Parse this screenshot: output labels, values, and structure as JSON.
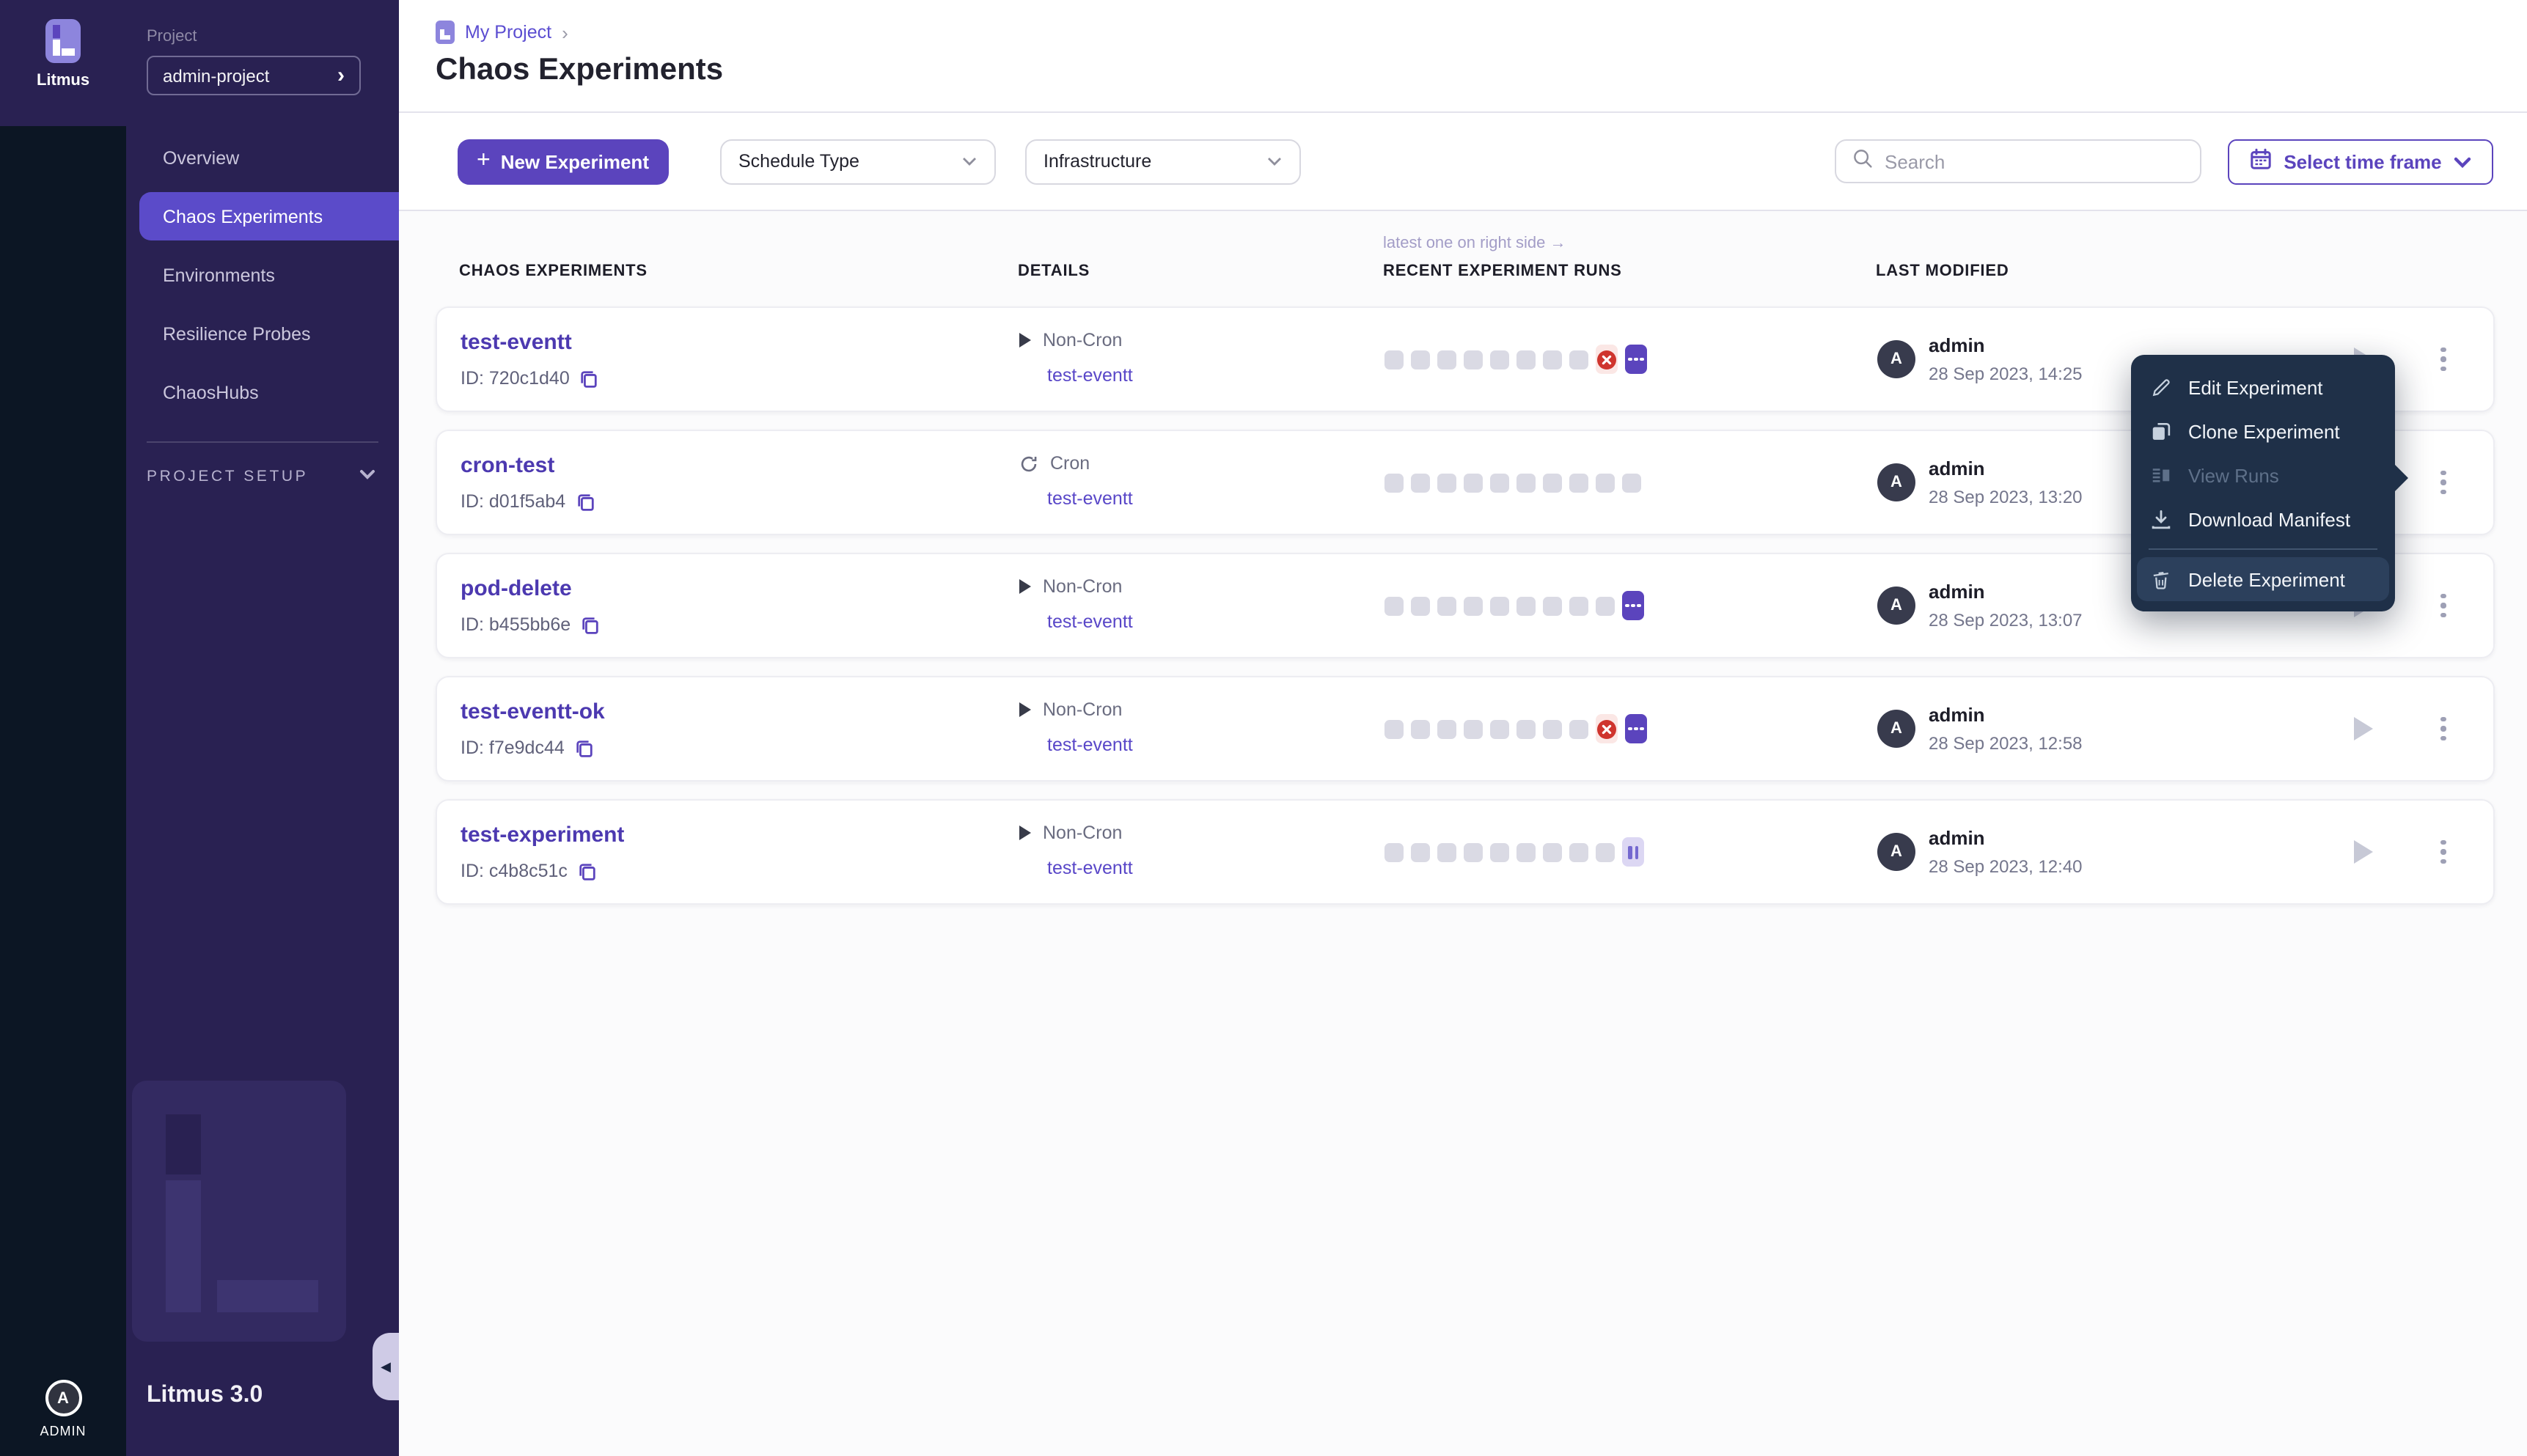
{
  "brand": {
    "name": "Litmus",
    "version": "Litmus 3.0",
    "admin_label": "ADMIN",
    "avatar_letter": "A"
  },
  "sidebar": {
    "project_label": "Project",
    "project_name": "admin-project",
    "items": [
      {
        "label": "Overview",
        "active": false
      },
      {
        "label": "Chaos Experiments",
        "active": true
      },
      {
        "label": "Environments",
        "active": false
      },
      {
        "label": "Resilience Probes",
        "active": false
      },
      {
        "label": "ChaosHubs",
        "active": false
      }
    ],
    "section_label": "PROJECT SETUP"
  },
  "header": {
    "breadcrumb": "My Project",
    "title": "Chaos Experiments"
  },
  "toolbar": {
    "new_experiment": "New Experiment",
    "schedule_type": "Schedule Type",
    "infrastructure": "Infrastructure",
    "search_placeholder": "Search",
    "time_frame": "Select time frame"
  },
  "table": {
    "annotation": "latest one on right side →",
    "headers": [
      "CHAOS EXPERIMENTS",
      "DETAILS",
      "RECENT EXPERIMENT RUNS",
      "LAST MODIFIED"
    ]
  },
  "rows": [
    {
      "name": "test-eventt",
      "id_label": "ID: 720c1d40",
      "schedule": "Non-Cron",
      "schedule_icon": "play",
      "target": "test-eventt",
      "runs": [
        "empty",
        "empty",
        "empty",
        "empty",
        "empty",
        "empty",
        "empty",
        "empty",
        "failed",
        "running"
      ],
      "user": "admin",
      "date": "28 Sep 2023, 14:25"
    },
    {
      "name": "cron-test",
      "id_label": "ID: d01f5ab4",
      "schedule": "Cron",
      "schedule_icon": "cron",
      "target": "test-eventt",
      "runs": [
        "empty",
        "empty",
        "empty",
        "empty",
        "empty",
        "empty",
        "empty",
        "empty",
        "empty",
        "empty"
      ],
      "user": "admin",
      "date": "28 Sep 2023, 13:20"
    },
    {
      "name": "pod-delete",
      "id_label": "ID: b455bb6e",
      "schedule": "Non-Cron",
      "schedule_icon": "play",
      "target": "test-eventt",
      "runs": [
        "empty",
        "empty",
        "empty",
        "empty",
        "empty",
        "empty",
        "empty",
        "empty",
        "empty",
        "running"
      ],
      "user": "admin",
      "date": "28 Sep 2023, 13:07"
    },
    {
      "name": "test-eventt-ok",
      "id_label": "ID: f7e9dc44",
      "schedule": "Non-Cron",
      "schedule_icon": "play",
      "target": "test-eventt",
      "runs": [
        "empty",
        "empty",
        "empty",
        "empty",
        "empty",
        "empty",
        "empty",
        "empty",
        "failed",
        "running"
      ],
      "user": "admin",
      "date": "28 Sep 2023, 12:58"
    },
    {
      "name": "test-experiment",
      "id_label": "ID: c4b8c51c",
      "schedule": "Non-Cron",
      "schedule_icon": "play",
      "target": "test-eventt",
      "runs": [
        "empty",
        "empty",
        "empty",
        "empty",
        "empty",
        "empty",
        "empty",
        "empty",
        "empty",
        "paused"
      ],
      "user": "admin",
      "date": "28 Sep 2023, 12:40"
    }
  ],
  "context_menu": {
    "items": [
      {
        "label": "Edit Experiment",
        "icon": "pencil-icon",
        "disabled": false
      },
      {
        "label": "Clone Experiment",
        "icon": "clone-icon",
        "disabled": false
      },
      {
        "label": "View Runs",
        "icon": "list-icon",
        "disabled": true
      },
      {
        "label": "Download Manifest",
        "icon": "download-icon",
        "disabled": false
      },
      {
        "label": "Delete Experiment",
        "icon": "trash-icon",
        "disabled": false,
        "highlighted": true,
        "divider_before": true
      }
    ]
  },
  "colors": {
    "accent": "#5b44bd",
    "sidebar": "#292152",
    "rail": "#0c1624",
    "menu_bg": "#1f3048",
    "failed_red": "#cf352e",
    "paused_bg": "#dcd7f3"
  }
}
